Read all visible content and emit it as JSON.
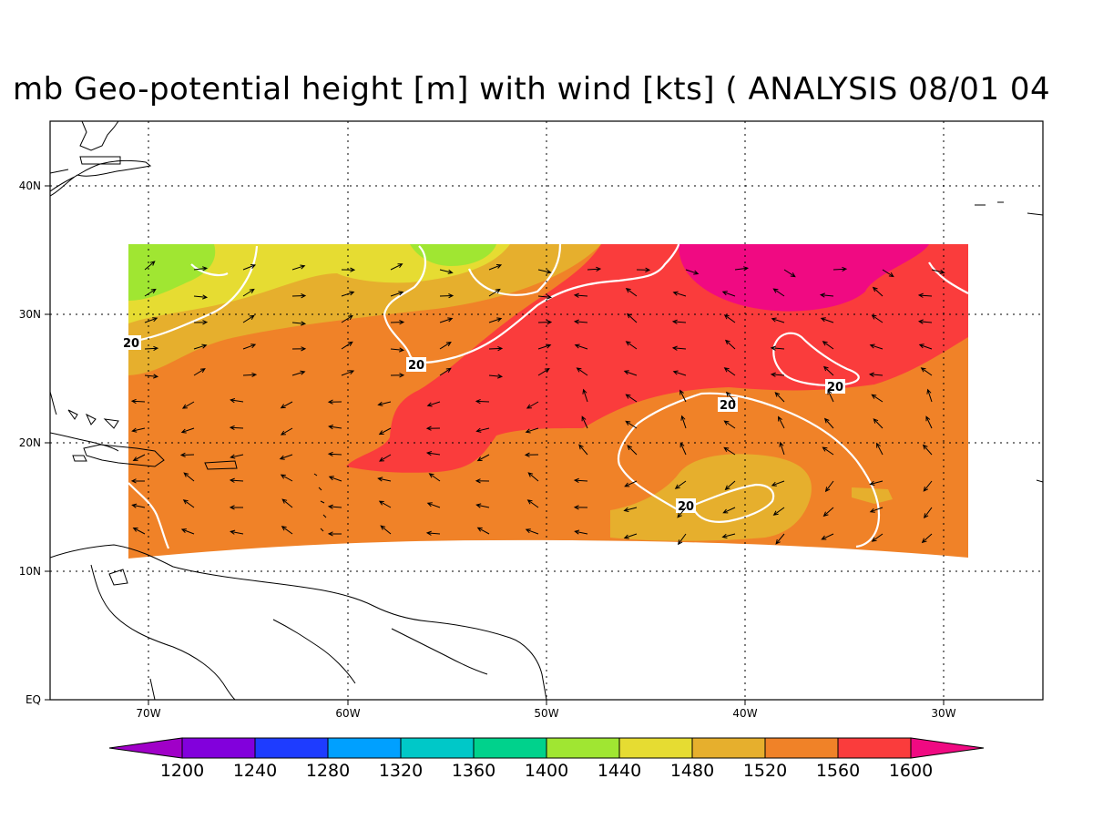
{
  "title": "mb Geo-potential height [m] with wind [kts] ( ANALYSIS 08/01 04",
  "colors": {
    "c1440": "#a0e632",
    "c1480": "#e6dc32",
    "c1520": "#e6af2d",
    "c1560": "#f08228",
    "c1600": "#fa3c3c",
    "c_over": "#f00a82",
    "contour": "#ffffff",
    "land": "#000000"
  },
  "chart_data": {
    "type": "map",
    "xticks": [
      "70W",
      "60W",
      "50W",
      "40W",
      "30W"
    ],
    "yticks": [
      "EQ",
      "10N",
      "20N",
      "30N",
      "40N"
    ],
    "colorbar": {
      "levels": [
        "1200",
        "1240",
        "1280",
        "1320",
        "1360",
        "1400",
        "1440",
        "1480",
        "1520",
        "1560",
        "1600"
      ],
      "colors": [
        "#a000c8",
        "#8200dc",
        "#1e3cff",
        "#00a0ff",
        "#00c8c8",
        "#00d28c",
        "#a0e632",
        "#e6dc32",
        "#e6af2d",
        "#f08228",
        "#fa3c3c",
        "#f00a82"
      ]
    },
    "contour_labels": [
      "20",
      "20",
      "20",
      "20",
      "20"
    ],
    "grid": true,
    "extent": {
      "lon": [
        -75,
        -25
      ],
      "lat": [
        0,
        45
      ]
    },
    "field_extent": {
      "lon": [
        -71,
        -29
      ],
      "lat": [
        11,
        35
      ]
    }
  }
}
